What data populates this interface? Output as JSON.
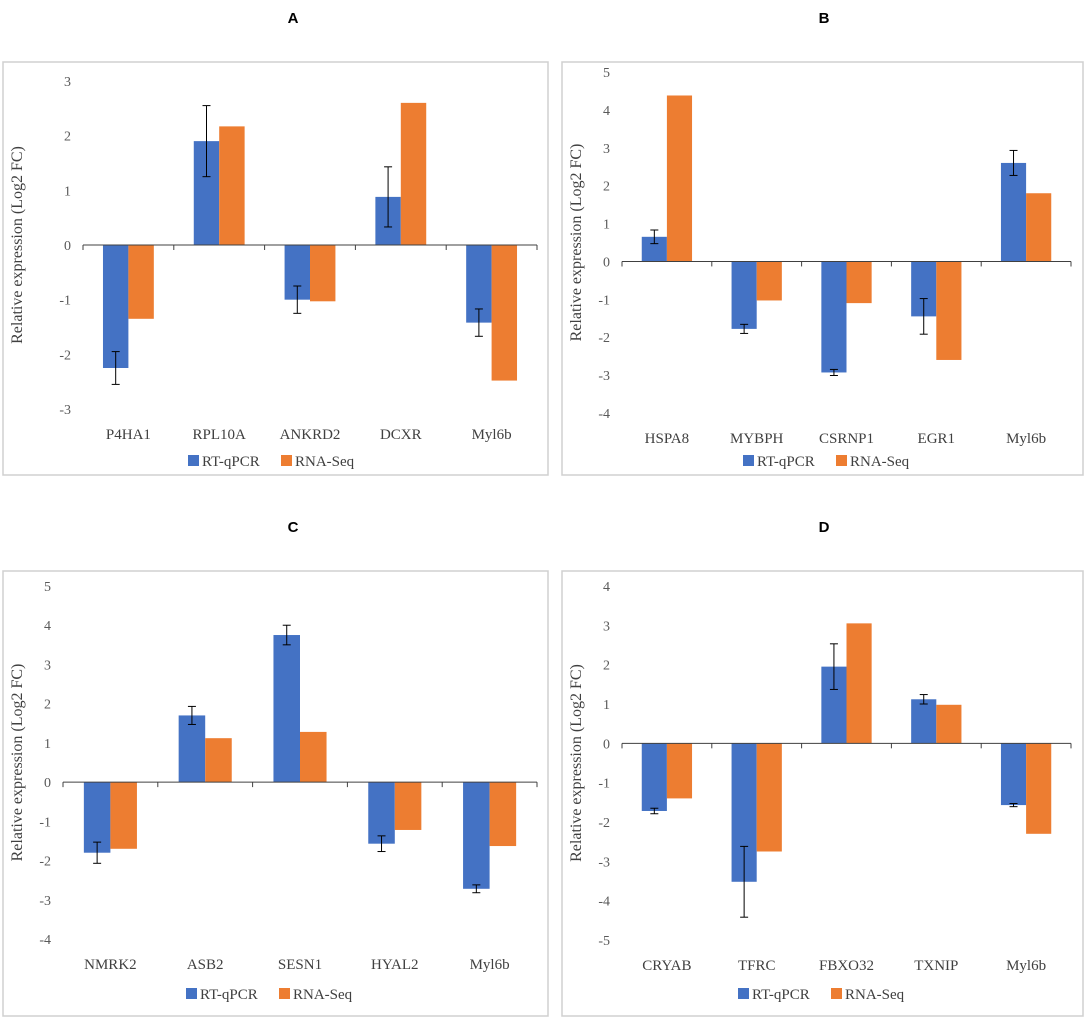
{
  "colors": {
    "rtqpcr": "#4472C4",
    "rnaseq": "#ED7D31",
    "frame": "#D0D0D0",
    "axis": "#404040"
  },
  "chart_data": [
    {
      "panel": "A",
      "type": "bar",
      "categories": [
        "P4HA1",
        "RPL10A",
        "ANKRD2",
        "DCXR",
        "Myl6b"
      ],
      "series": [
        {
          "name": "RT-qPCR",
          "values": [
            -2.25,
            1.9,
            -1.0,
            0.88,
            -1.42
          ],
          "errors": [
            0.3,
            0.65,
            0.25,
            0.55,
            0.25
          ]
        },
        {
          "name": "RNA-Seq",
          "values": [
            -1.35,
            2.17,
            -1.03,
            2.6,
            -2.48
          ]
        }
      ],
      "ylabel": "Relative expression (Log2 FC)",
      "ylim": [
        -3,
        3
      ],
      "yticks": [
        3,
        2,
        1,
        0,
        -1,
        -2,
        -3
      ],
      "legend": [
        "RT-qPCR",
        "RNA-Seq"
      ]
    },
    {
      "panel": "B",
      "type": "bar",
      "categories": [
        "HSPA8",
        "MYBPH",
        "CSRNP1",
        "EGR1",
        "Myl6b"
      ],
      "series": [
        {
          "name": "RT-qPCR",
          "values": [
            0.65,
            -1.78,
            -2.93,
            -1.45,
            2.6
          ],
          "errors": [
            0.18,
            0.12,
            0.08,
            0.47,
            0.33
          ]
        },
        {
          "name": "RNA-Seq",
          "values": [
            4.38,
            -1.03,
            -1.1,
            -2.6,
            1.8
          ]
        }
      ],
      "ylabel": "Relative expression (Log2 FC)",
      "ylim": [
        -4,
        5
      ],
      "yticks": [
        5,
        4,
        3,
        2,
        1,
        0,
        -1,
        -2,
        -3,
        -4
      ],
      "legend": [
        "RT-qPCR",
        "RNA-Seq"
      ]
    },
    {
      "panel": "C",
      "type": "bar",
      "categories": [
        "NMRK2",
        "ASB2",
        "SESN1",
        "HYAL2",
        "Myl6b"
      ],
      "series": [
        {
          "name": "RT-qPCR",
          "values": [
            -1.8,
            1.7,
            3.75,
            -1.57,
            -2.72
          ],
          "errors": [
            0.27,
            0.23,
            0.25,
            0.2,
            0.1
          ]
        },
        {
          "name": "RNA-Seq",
          "values": [
            -1.7,
            1.12,
            1.28,
            -1.22,
            -1.63
          ]
        }
      ],
      "ylabel": "Relative expression (Log2 FC)",
      "ylim": [
        -4,
        5
      ],
      "yticks": [
        5,
        4,
        3,
        2,
        1,
        0,
        -1,
        -2,
        -3,
        -4
      ],
      "legend": [
        "RT-qPCR",
        "RNA-Seq"
      ]
    },
    {
      "panel": "D",
      "type": "bar",
      "categories": [
        "CRYAB",
        "TFRC",
        "FBXO32",
        "TXNIP",
        "Myl6b"
      ],
      "series": [
        {
          "name": "RT-qPCR",
          "values": [
            -1.72,
            -3.52,
            1.95,
            1.12,
            -1.57
          ],
          "errors": [
            0.07,
            0.9,
            0.58,
            0.12,
            0.04
          ]
        },
        {
          "name": "RNA-Seq",
          "values": [
            -1.4,
            -2.75,
            3.05,
            0.98,
            -2.3
          ]
        }
      ],
      "ylabel": "Relative expression (Log2 FC)",
      "ylim": [
        -5,
        4
      ],
      "yticks": [
        4,
        3,
        2,
        1,
        0,
        -1,
        -2,
        -3,
        -4,
        -5
      ],
      "legend": [
        "RT-qPCR",
        "RNA-Seq"
      ]
    }
  ]
}
